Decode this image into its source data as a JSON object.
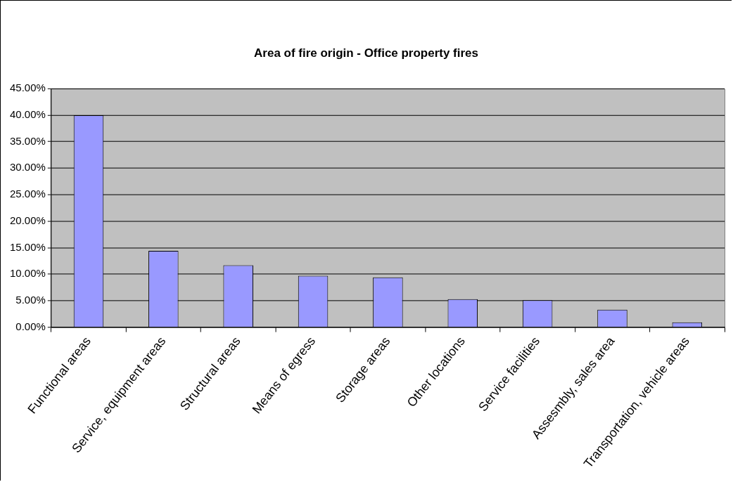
{
  "chart_data": {
    "type": "bar",
    "title": "Area of fire origin - Office property fires",
    "categories": [
      "Functional areas",
      "Service, equipment areas",
      "Structural areas",
      "Means of egress",
      "Storage areas",
      "Other locations",
      "Service facilities",
      "Assesmbly, sales area",
      "Transportation, vehicle areas"
    ],
    "values": [
      40.0,
      14.4,
      11.7,
      9.7,
      9.4,
      5.3,
      5.1,
      3.3,
      0.9
    ],
    "color": "#9999ff",
    "ylim": [
      0,
      45
    ],
    "yticks": [
      {
        "value": 0,
        "label": "0.00%"
      },
      {
        "value": 5,
        "label": "5.00%"
      },
      {
        "value": 10,
        "label": "10.00%"
      },
      {
        "value": 15,
        "label": "15.00%"
      },
      {
        "value": 20,
        "label": "20.00%"
      },
      {
        "value": 25,
        "label": "25.00%"
      },
      {
        "value": 30,
        "label": "30.00%"
      },
      {
        "value": 35,
        "label": "35.00%"
      },
      {
        "value": 40,
        "label": "40.00%"
      },
      {
        "value": 45,
        "label": "45.00%"
      }
    ],
    "grid": "y",
    "legend": false
  }
}
